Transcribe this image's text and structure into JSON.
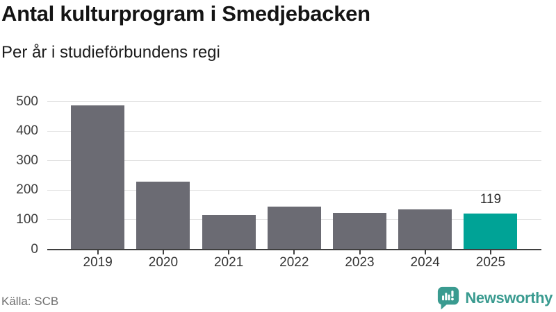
{
  "header": {
    "title": "Antal kulturprogram i Smedjebacken",
    "subtitle": "Per år i studieförbundens regi"
  },
  "chart_data": {
    "type": "bar",
    "title": "Antal kulturprogram i Smedjebacken",
    "subtitle": "Per år i studieförbundens regi",
    "categories": [
      "2019",
      "2020",
      "2021",
      "2022",
      "2023",
      "2024",
      "2025"
    ],
    "values": [
      486,
      228,
      115,
      143,
      122,
      133,
      119
    ],
    "highlight_index": 6,
    "highlight_value_label": "119",
    "xlabel": "",
    "ylabel": "",
    "ylim": [
      0,
      500
    ],
    "yticks": [
      0,
      100,
      200,
      300,
      400,
      500
    ],
    "grid": true,
    "legend_position": "none",
    "bar_color": "#6b6b73",
    "highlight_color": "#00a396",
    "gridline_color": "#e3e3e3",
    "axis_color": "#3f3f3f"
  },
  "footer": {
    "source": "Källa: SCB",
    "brand": "Newsworthy",
    "brand_color": "#3a9b90"
  }
}
